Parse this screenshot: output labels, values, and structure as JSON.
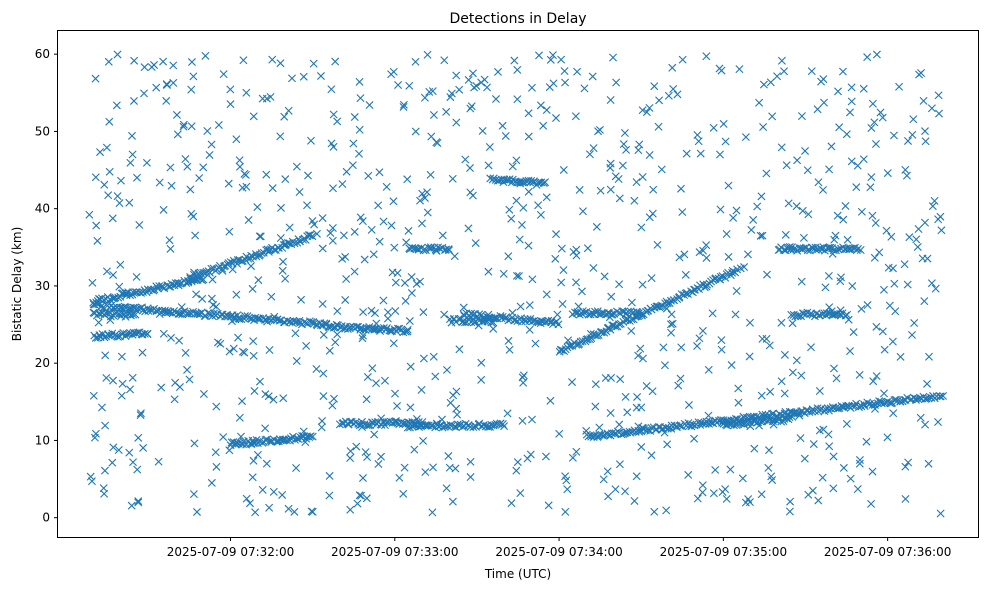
{
  "chart_data": {
    "type": "scatter",
    "title": "Detections in Delay",
    "xlabel": "Time (UTC)",
    "ylabel": "Bistatic Delay (km)",
    "marker": "x",
    "color": "#1f77b4",
    "grid": false,
    "legend": "none",
    "xlim": [
      "2025-07-09 07:30:57",
      "2025-07-09 07:36:33"
    ],
    "ylim": [
      -2.5,
      63
    ],
    "x_ticks": [
      "2025-07-09 07:32:00",
      "2025-07-09 07:33:00",
      "2025-07-09 07:34:00",
      "2025-07-09 07:35:00",
      "2025-07-09 07:36:00"
    ],
    "y_ticks": [
      0,
      10,
      20,
      30,
      40,
      50,
      60
    ],
    "tracks": [
      {
        "start": "2025-07-09 07:31:10",
        "end": "2025-07-09 07:31:50",
        "delay_start": 28.0,
        "delay_end": 31.0
      },
      {
        "start": "2025-07-09 07:31:45",
        "end": "2025-07-09 07:32:30",
        "delay_start": 31.0,
        "delay_end": 36.5
      },
      {
        "start": "2025-07-09 07:31:10",
        "end": "2025-07-09 07:32:35",
        "delay_start": 27.5,
        "delay_end": 25.0
      },
      {
        "start": "2025-07-09 07:32:35",
        "end": "2025-07-09 07:33:05",
        "delay_start": 24.8,
        "delay_end": 24.2
      },
      {
        "start": "2025-07-09 07:33:20",
        "end": "2025-07-09 07:33:35",
        "delay_start": 25.5,
        "delay_end": 25.5
      },
      {
        "start": "2025-07-09 07:33:25",
        "end": "2025-07-09 07:34:00",
        "delay_start": 26.3,
        "delay_end": 25.2
      },
      {
        "start": "2025-07-09 07:31:10",
        "end": "2025-07-09 07:31:25",
        "delay_start": 26.3,
        "delay_end": 26.2
      },
      {
        "start": "2025-07-09 07:31:10",
        "end": "2025-07-09 07:31:30",
        "delay_start": 23.5,
        "delay_end": 23.8
      },
      {
        "start": "2025-07-09 07:32:00",
        "end": "2025-07-09 07:32:30",
        "delay_start": 9.5,
        "delay_end": 10.5
      },
      {
        "start": "2025-07-09 07:32:40",
        "end": "2025-07-09 07:33:10",
        "delay_start": 12.2,
        "delay_end": 12.2
      },
      {
        "start": "2025-07-09 07:33:05",
        "end": "2025-07-09 07:33:40",
        "delay_start": 11.8,
        "delay_end": 12.0
      },
      {
        "start": "2025-07-09 07:34:00",
        "end": "2025-07-09 07:35:05",
        "delay_start": 21.5,
        "delay_end": 32.0
      },
      {
        "start": "2025-07-09 07:34:10",
        "end": "2025-07-09 07:36:20",
        "delay_start": 10.5,
        "delay_end": 15.8
      },
      {
        "start": "2025-07-09 07:34:05",
        "end": "2025-07-09 07:34:30",
        "delay_start": 26.5,
        "delay_end": 26.5
      },
      {
        "start": "2025-07-09 07:35:25",
        "end": "2025-07-09 07:35:45",
        "delay_start": 26.3,
        "delay_end": 26.3
      },
      {
        "start": "2025-07-09 07:35:20",
        "end": "2025-07-09 07:35:50",
        "delay_start": 34.8,
        "delay_end": 34.8
      },
      {
        "start": "2025-07-09 07:33:35",
        "end": "2025-07-09 07:33:55",
        "delay_start": 43.8,
        "delay_end": 43.2
      },
      {
        "start": "2025-07-09 07:33:05",
        "end": "2025-07-09 07:33:20",
        "delay_start": 34.8,
        "delay_end": 34.8
      },
      {
        "start": "2025-07-09 07:35:00",
        "end": "2025-07-09 07:35:25",
        "delay_start": 12.0,
        "delay_end": 12.8
      }
    ],
    "clutter": {
      "start": "2025-07-09 07:31:08",
      "end": "2025-07-09 07:36:20",
      "delay_min": 0.5,
      "delay_max": 60
    }
  }
}
